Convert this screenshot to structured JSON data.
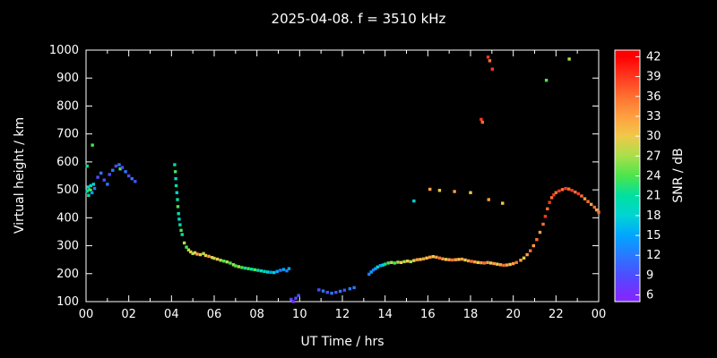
{
  "chart_data": {
    "type": "scatter",
    "title": "2025-04-08. f = 3510 kHz",
    "xlabel": "UT Time / hrs",
    "ylabel": "Virtual height / km",
    "xlim": [
      0,
      24
    ],
    "ylim": [
      100,
      1000
    ],
    "background": "#000000",
    "foreground": "#ffffff",
    "x_ticks": {
      "values": [
        0,
        2,
        4,
        6,
        8,
        10,
        12,
        14,
        16,
        18,
        20,
        22,
        24
      ],
      "labels": [
        "00",
        "02",
        "04",
        "06",
        "08",
        "10",
        "12",
        "14",
        "16",
        "18",
        "20",
        "22",
        "00"
      ],
      "minor_values": [
        1,
        3,
        5,
        7,
        9,
        11,
        13,
        15,
        17,
        19,
        21,
        23
      ]
    },
    "y_ticks": [
      100,
      200,
      300,
      400,
      500,
      600,
      700,
      800,
      900,
      1000
    ],
    "colorbar": {
      "label": "SNR / dB",
      "ticks": [
        42,
        39,
        36,
        33,
        30,
        27,
        24,
        21,
        18,
        15,
        12,
        9,
        6
      ],
      "range": [
        5,
        43
      ],
      "stops": [
        {
          "v": 6,
          "c": "#7d2bff"
        },
        {
          "v": 9,
          "c": "#4d4dff"
        },
        {
          "v": 12,
          "c": "#2979ff"
        },
        {
          "v": 15,
          "c": "#00a6ff"
        },
        {
          "v": 18,
          "c": "#00d4d4"
        },
        {
          "v": 21,
          "c": "#00e0a0"
        },
        {
          "v": 24,
          "c": "#4ce44c"
        },
        {
          "v": 27,
          "c": "#a8e04a"
        },
        {
          "v": 30,
          "c": "#f0c84a"
        },
        {
          "v": 33,
          "c": "#ffa040"
        },
        {
          "v": 36,
          "c": "#ff7030"
        },
        {
          "v": 39,
          "c": "#ff3820"
        },
        {
          "v": 42,
          "c": "#ff0000"
        }
      ]
    },
    "points": [
      [
        0.05,
        585,
        21
      ],
      [
        0.05,
        495,
        21
      ],
      [
        0.1,
        510,
        18
      ],
      [
        0.12,
        480,
        21
      ],
      [
        0.18,
        500,
        24
      ],
      [
        0.22,
        515,
        18
      ],
      [
        0.28,
        490,
        15
      ],
      [
        0.3,
        660,
        24
      ],
      [
        0.35,
        520,
        18
      ],
      [
        0.4,
        505,
        12
      ],
      [
        0.55,
        545,
        9
      ],
      [
        0.7,
        560,
        12
      ],
      [
        0.85,
        535,
        9
      ],
      [
        1.0,
        520,
        12
      ],
      [
        1.1,
        555,
        9
      ],
      [
        1.25,
        570,
        12
      ],
      [
        1.4,
        585,
        9
      ],
      [
        1.55,
        590,
        12
      ],
      [
        1.6,
        575,
        24
      ],
      [
        1.7,
        580,
        9
      ],
      [
        1.85,
        565,
        12
      ],
      [
        2.0,
        550,
        9
      ],
      [
        2.15,
        540,
        12
      ],
      [
        2.3,
        530,
        9
      ],
      [
        4.15,
        590,
        21
      ],
      [
        4.18,
        565,
        24
      ],
      [
        4.2,
        540,
        18
      ],
      [
        4.22,
        515,
        21
      ],
      [
        4.25,
        490,
        18
      ],
      [
        4.28,
        465,
        21
      ],
      [
        4.3,
        440,
        24
      ],
      [
        4.33,
        415,
        21
      ],
      [
        4.36,
        395,
        18
      ],
      [
        4.4,
        375,
        21
      ],
      [
        4.45,
        355,
        24
      ],
      [
        4.5,
        340,
        21
      ],
      [
        4.6,
        310,
        27
      ],
      [
        4.7,
        295,
        24
      ],
      [
        4.8,
        285,
        27
      ],
      [
        4.9,
        278,
        30
      ],
      [
        5.0,
        272,
        27
      ],
      [
        5.1,
        275,
        30
      ],
      [
        5.2,
        270,
        33
      ],
      [
        5.35,
        268,
        30
      ],
      [
        5.5,
        272,
        27
      ],
      [
        5.6,
        265,
        30
      ],
      [
        5.75,
        262,
        33
      ],
      [
        5.9,
        258,
        30
      ],
      [
        6.0,
        255,
        27
      ],
      [
        6.15,
        252,
        30
      ],
      [
        6.3,
        248,
        27
      ],
      [
        6.45,
        245,
        24
      ],
      [
        6.6,
        242,
        27
      ],
      [
        6.75,
        238,
        24
      ],
      [
        6.9,
        232,
        27
      ],
      [
        7.0,
        228,
        24
      ],
      [
        7.15,
        225,
        27
      ],
      [
        7.3,
        222,
        24
      ],
      [
        7.45,
        220,
        21
      ],
      [
        7.6,
        218,
        24
      ],
      [
        7.75,
        216,
        21
      ],
      [
        7.9,
        214,
        24
      ],
      [
        8.05,
        212,
        21
      ],
      [
        8.2,
        210,
        18
      ],
      [
        8.35,
        208,
        21
      ],
      [
        8.5,
        206,
        18
      ],
      [
        8.65,
        205,
        15
      ],
      [
        8.8,
        204,
        18
      ],
      [
        8.95,
        208,
        15
      ],
      [
        9.1,
        212,
        12
      ],
      [
        9.25,
        215,
        15
      ],
      [
        9.4,
        210,
        12
      ],
      [
        9.5,
        218,
        15
      ],
      [
        9.6,
        108,
        9
      ],
      [
        9.7,
        100,
        6
      ],
      [
        9.82,
        112,
        9
      ],
      [
        9.95,
        122,
        9
      ],
      [
        10.9,
        142,
        9
      ],
      [
        11.1,
        138,
        12
      ],
      [
        11.3,
        133,
        9
      ],
      [
        11.5,
        130,
        12
      ],
      [
        11.7,
        133,
        9
      ],
      [
        11.9,
        137,
        12
      ],
      [
        12.1,
        141,
        9
      ],
      [
        12.35,
        146,
        12
      ],
      [
        12.55,
        150,
        12
      ],
      [
        13.25,
        198,
        12
      ],
      [
        13.35,
        206,
        15
      ],
      [
        13.45,
        213,
        12
      ],
      [
        13.55,
        218,
        15
      ],
      [
        13.65,
        224,
        18
      ],
      [
        13.78,
        229,
        15
      ],
      [
        13.9,
        231,
        18
      ],
      [
        14.0,
        234,
        21
      ],
      [
        14.15,
        238,
        24
      ],
      [
        14.3,
        240,
        27
      ],
      [
        14.45,
        238,
        24
      ],
      [
        14.6,
        241,
        27
      ],
      [
        14.75,
        240,
        30
      ],
      [
        14.9,
        243,
        27
      ],
      [
        15.05,
        245,
        30
      ],
      [
        15.2,
        243,
        27
      ],
      [
        15.35,
        247,
        30
      ],
      [
        15.5,
        250,
        33
      ],
      [
        15.65,
        251,
        30
      ],
      [
        15.8,
        253,
        33
      ],
      [
        15.95,
        256,
        30
      ],
      [
        16.1,
        259,
        33
      ],
      [
        16.25,
        261,
        30
      ],
      [
        16.4,
        259,
        33
      ],
      [
        16.55,
        256,
        36
      ],
      [
        16.7,
        253,
        33
      ],
      [
        16.85,
        251,
        30
      ],
      [
        17.0,
        250,
        33
      ],
      [
        17.15,
        249,
        36
      ],
      [
        17.3,
        250,
        33
      ],
      [
        17.45,
        251,
        30
      ],
      [
        17.6,
        252,
        33
      ],
      [
        17.75,
        249,
        30
      ],
      [
        17.9,
        246,
        33
      ],
      [
        18.05,
        244,
        36
      ],
      [
        18.2,
        242,
        33
      ],
      [
        18.35,
        240,
        30
      ],
      [
        18.5,
        239,
        33
      ],
      [
        18.65,
        238,
        36
      ],
      [
        18.8,
        240,
        33
      ],
      [
        18.95,
        238,
        30
      ],
      [
        19.1,
        236,
        33
      ],
      [
        19.25,
        234,
        30
      ],
      [
        19.4,
        232,
        33
      ],
      [
        19.55,
        230,
        36
      ],
      [
        19.7,
        231,
        33
      ],
      [
        19.85,
        233,
        30
      ],
      [
        20.0,
        236,
        33
      ],
      [
        20.15,
        240,
        36
      ],
      [
        20.35,
        248,
        33
      ],
      [
        20.5,
        256,
        30
      ],
      [
        20.65,
        268,
        33
      ],
      [
        20.8,
        282,
        36
      ],
      [
        20.95,
        300,
        33
      ],
      [
        21.1,
        322,
        36
      ],
      [
        21.25,
        348,
        33
      ],
      [
        21.4,
        377,
        36
      ],
      [
        21.5,
        405,
        39
      ],
      [
        21.6,
        432,
        36
      ],
      [
        21.7,
        455,
        39
      ],
      [
        21.8,
        472,
        36
      ],
      [
        21.9,
        482,
        39
      ],
      [
        22.0,
        490,
        36
      ],
      [
        22.15,
        496,
        39
      ],
      [
        22.3,
        501,
        36
      ],
      [
        22.45,
        505,
        39
      ],
      [
        22.6,
        503,
        36
      ],
      [
        22.75,
        498,
        39
      ],
      [
        22.9,
        492,
        36
      ],
      [
        23.05,
        486,
        39
      ],
      [
        23.2,
        478,
        36
      ],
      [
        23.35,
        468,
        33
      ],
      [
        23.5,
        458,
        36
      ],
      [
        23.65,
        448,
        33
      ],
      [
        23.8,
        438,
        36
      ],
      [
        23.9,
        428,
        33
      ],
      [
        24.0,
        420,
        36
      ],
      [
        15.35,
        460,
        18
      ],
      [
        16.1,
        502,
        33
      ],
      [
        16.55,
        498,
        30
      ],
      [
        17.25,
        494,
        33
      ],
      [
        18.0,
        490,
        30
      ],
      [
        18.85,
        465,
        33
      ],
      [
        19.5,
        452,
        30
      ],
      [
        18.5,
        752,
        39
      ],
      [
        18.56,
        742,
        36
      ],
      [
        18.82,
        975,
        39
      ],
      [
        18.9,
        962,
        36
      ],
      [
        19.02,
        932,
        39
      ],
      [
        21.55,
        892,
        24
      ],
      [
        22.62,
        968,
        27
      ]
    ]
  }
}
